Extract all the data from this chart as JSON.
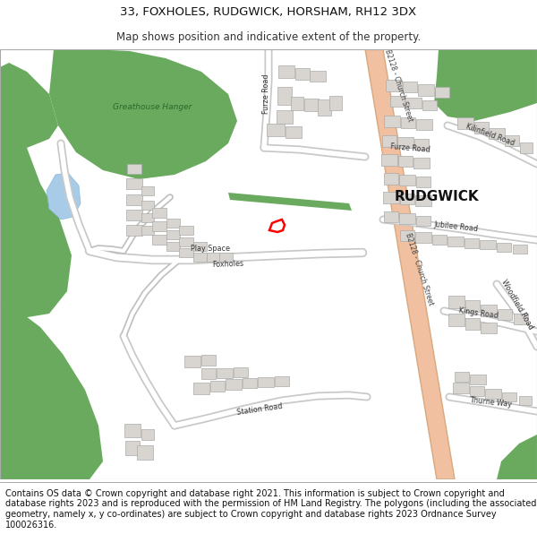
{
  "title_line1": "33, FOXHOLES, RUDGWICK, HORSHAM, RH12 3DX",
  "title_line2": "Map shows position and indicative extent of the property.",
  "footer_text": "Contains OS data © Crown copyright and database right 2021. This information is subject to Crown copyright and database rights 2023 and is reproduced with the permission of HM Land Registry. The polygons (including the associated geometry, namely x, y co-ordinates) are subject to Crown copyright and database rights 2023 Ordnance Survey 100026316.",
  "title_fontsize": 9.5,
  "subtitle_fontsize": 8.5,
  "footer_fontsize": 7.0,
  "map_bg": "#f5f3f0",
  "green_color": "#6aaa5f",
  "road_color": "#f0c0a0",
  "road_stroke": "#d8a880",
  "building_color": "#d8d4d0",
  "building_stroke": "#aaaaaa",
  "water_color": "#a8cce8",
  "property_color": "#ff0000",
  "label_color": "#333333",
  "rudgwick_fontsize": 11,
  "street_label_fontsize": 6.0
}
